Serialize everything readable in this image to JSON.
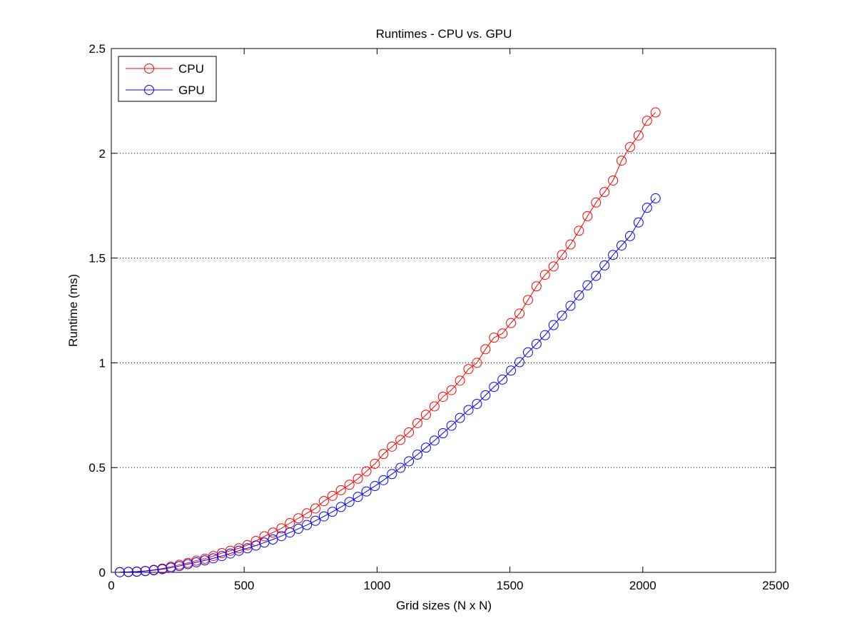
{
  "chart_data": {
    "type": "line",
    "title": "Runtimes - CPU vs. GPU",
    "xlabel": "Grid sizes (N x N)",
    "ylabel": "Runtime (ms)",
    "xlim": [
      0,
      2500
    ],
    "ylim": [
      0,
      2.5
    ],
    "xticks": [
      0,
      500,
      1000,
      1500,
      2000,
      2500
    ],
    "yticks": [
      0,
      0.5,
      1,
      1.5,
      2,
      2.5
    ],
    "xtick_labels": [
      "0",
      "500",
      "1000",
      "1500",
      "2000",
      "2500"
    ],
    "ytick_labels": [
      "0",
      "0.5",
      "1",
      "1.5",
      "2",
      "2.5"
    ],
    "grid": "horizontal dotted lines at y ticks",
    "legend_position": "top-left",
    "marker": "open circle",
    "x": [
      32,
      64,
      96,
      128,
      160,
      192,
      224,
      256,
      288,
      320,
      352,
      384,
      416,
      448,
      480,
      512,
      544,
      576,
      608,
      640,
      672,
      704,
      736,
      768,
      800,
      832,
      864,
      896,
      928,
      960,
      992,
      1024,
      1056,
      1088,
      1120,
      1152,
      1184,
      1216,
      1248,
      1280,
      1312,
      1344,
      1376,
      1408,
      1440,
      1472,
      1504,
      1536,
      1568,
      1600,
      1632,
      1664,
      1696,
      1728,
      1760,
      1792,
      1824,
      1856,
      1888,
      1920,
      1952,
      1984,
      2016,
      2048
    ],
    "series": [
      {
        "name": "CPU",
        "color": "#ff0000",
        "values": [
          0.001,
          0.002,
          0.004,
          0.007,
          0.012,
          0.018,
          0.027,
          0.036,
          0.045,
          0.056,
          0.065,
          0.078,
          0.092,
          0.103,
          0.115,
          0.13,
          0.15,
          0.172,
          0.19,
          0.21,
          0.235,
          0.258,
          0.282,
          0.305,
          0.34,
          0.365,
          0.392,
          0.418,
          0.447,
          0.482,
          0.518,
          0.565,
          0.6,
          0.632,
          0.668,
          0.712,
          0.752,
          0.792,
          0.838,
          0.87,
          0.915,
          0.97,
          1.0,
          1.065,
          1.12,
          1.14,
          1.19,
          1.235,
          1.3,
          1.365,
          1.42,
          1.46,
          1.515,
          1.565,
          1.63,
          1.7,
          1.765,
          1.815,
          1.87,
          1.965,
          2.03,
          2.085,
          2.155,
          2.195
        ]
      },
      {
        "name": "GPU",
        "color": "#0000ff",
        "values": [
          0.001,
          0.002,
          0.003,
          0.006,
          0.01,
          0.015,
          0.022,
          0.03,
          0.039,
          0.048,
          0.057,
          0.067,
          0.078,
          0.09,
          0.103,
          0.115,
          0.128,
          0.142,
          0.157,
          0.173,
          0.19,
          0.208,
          0.226,
          0.246,
          0.267,
          0.289,
          0.312,
          0.336,
          0.36,
          0.386,
          0.412,
          0.44,
          0.469,
          0.499,
          0.53,
          0.562,
          0.595,
          0.629,
          0.664,
          0.7,
          0.737,
          0.775,
          0.804,
          0.845,
          0.885,
          0.92,
          0.963,
          1.003,
          1.05,
          1.09,
          1.132,
          1.18,
          1.225,
          1.272,
          1.322,
          1.37,
          1.415,
          1.465,
          1.515,
          1.56,
          1.605,
          1.67,
          1.74,
          1.785
        ]
      }
    ]
  }
}
